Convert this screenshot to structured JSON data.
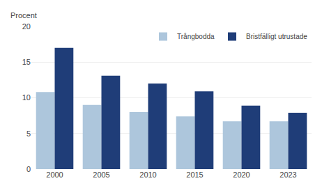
{
  "chart_data": {
    "type": "bar",
    "ylabel": "Procent",
    "categories": [
      "2000",
      "2005",
      "2010",
      "2015",
      "2020",
      "2023"
    ],
    "series": [
      {
        "name": "Trångbodda",
        "color": "#adc6dc",
        "values": [
          10.8,
          9.0,
          8.0,
          7.4,
          6.7,
          6.7
        ]
      },
      {
        "name": "Bristfälligt utrustade",
        "color": "#1f3d78",
        "values": [
          17.0,
          13.1,
          12.0,
          10.9,
          8.9,
          7.9
        ]
      }
    ],
    "ylim": [
      0,
      20
    ],
    "yticks": [
      0,
      5,
      10,
      15,
      20
    ],
    "grid": true,
    "legend": "upper right"
  }
}
